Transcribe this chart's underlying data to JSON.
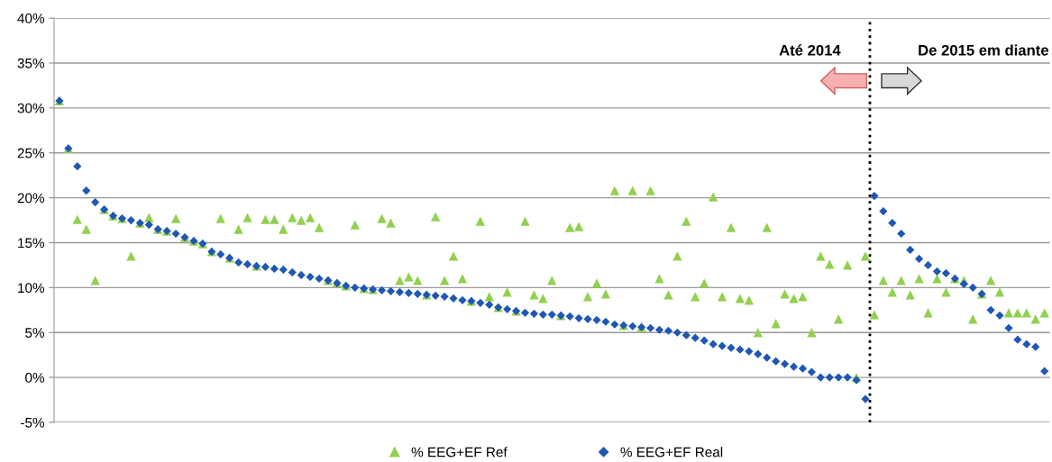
{
  "chart_data": {
    "type": "scatter",
    "categories": [
      null,
      null,
      null,
      null,
      null,
      null,
      null,
      null,
      null,
      null,
      null,
      null,
      null,
      null,
      null,
      null,
      null,
      null,
      null,
      null,
      null,
      null,
      null,
      null,
      null,
      null,
      null,
      null,
      null,
      null,
      null,
      null,
      null,
      null,
      null,
      null,
      null,
      null,
      null,
      null,
      null,
      null,
      null,
      null,
      null,
      null,
      null,
      null,
      null,
      null,
      null,
      null,
      null,
      null,
      null,
      null,
      null,
      null,
      null,
      null,
      null,
      null,
      null,
      null,
      null,
      null,
      null,
      null,
      null,
      null,
      null,
      null,
      null,
      null,
      null,
      null,
      null,
      null,
      null,
      null,
      null,
      null,
      null,
      null,
      null,
      null,
      null,
      null,
      null,
      null,
      null,
      null,
      null,
      null,
      null,
      null,
      null,
      null,
      null,
      null,
      null,
      null,
      null,
      null,
      null,
      null,
      null,
      null,
      null,
      null,
      null
    ],
    "series": [
      {
        "name": "% EEG+EF Ref",
        "color": "#92d050",
        "marker": "triangle",
        "values": [
          30.8,
          25.5,
          17.6,
          16.5,
          10.8,
          18.7,
          18.0,
          17.7,
          13.5,
          17.2,
          17.8,
          16.5,
          16.3,
          17.7,
          15.6,
          15.2,
          14.9,
          14.0,
          17.7,
          13.3,
          16.5,
          17.8,
          12.4,
          17.6,
          17.6,
          16.5,
          17.8,
          17.5,
          17.8,
          16.7,
          10.8,
          10.5,
          10.2,
          17.0,
          9.9,
          9.8,
          17.7,
          17.2,
          10.8,
          11.2,
          10.8,
          9.2,
          17.9,
          10.8,
          13.5,
          11.0,
          8.5,
          17.4,
          9.0,
          7.8,
          9.5,
          7.4,
          17.4,
          9.2,
          8.8,
          10.8,
          6.9,
          16.7,
          16.8,
          9.0,
          10.5,
          9.3,
          20.8,
          5.8,
          20.8,
          5.6,
          20.8,
          11.0,
          9.2,
          13.5,
          17.4,
          9.0,
          10.5,
          20.1,
          9.0,
          16.7,
          8.8,
          8.6,
          5.0,
          16.7,
          6.0,
          9.3,
          8.8,
          9.0,
          5.0,
          13.5,
          12.6,
          6.5,
          12.5,
          0.0,
          13.5,
          7.0,
          10.8,
          9.5,
          10.8,
          9.2,
          11.0,
          7.2,
          11.0,
          9.5,
          11.0,
          10.8,
          6.5,
          9.3,
          10.8,
          9.5,
          7.2,
          7.2,
          7.2,
          6.5,
          7.2
        ]
      },
      {
        "name": "% EEG+EF Real",
        "color": "#1f57b4",
        "marker": "diamond",
        "values": [
          30.8,
          25.5,
          23.5,
          20.8,
          19.5,
          18.7,
          18.0,
          17.7,
          17.5,
          17.2,
          17.0,
          16.5,
          16.3,
          16.0,
          15.6,
          15.2,
          14.9,
          14.0,
          13.7,
          13.3,
          12.8,
          12.6,
          12.4,
          12.3,
          12.1,
          12.0,
          11.7,
          11.4,
          11.2,
          11.0,
          10.8,
          10.5,
          10.2,
          10.0,
          9.9,
          9.8,
          9.7,
          9.6,
          9.5,
          9.4,
          9.3,
          9.2,
          9.1,
          9.0,
          8.8,
          8.6,
          8.5,
          8.3,
          8.1,
          7.8,
          7.6,
          7.4,
          7.2,
          7.1,
          7.0,
          7.0,
          6.9,
          6.8,
          6.6,
          6.5,
          6.4,
          6.2,
          5.9,
          5.8,
          5.7,
          5.6,
          5.5,
          5.3,
          5.2,
          5.0,
          4.7,
          4.4,
          4.1,
          3.7,
          3.5,
          3.3,
          3.1,
          2.9,
          2.6,
          2.2,
          1.8,
          1.5,
          1.2,
          1.0,
          0.6,
          0.0,
          0.0,
          0.0,
          0.0,
          -0.3,
          -2.4,
          20.2,
          18.5,
          17.2,
          16.0,
          14.2,
          13.2,
          12.5,
          11.8,
          11.6,
          11.0,
          10.4,
          10.0,
          9.3,
          7.5,
          6.9,
          5.5,
          4.2,
          3.7,
          3.4,
          0.7
        ]
      }
    ],
    "ylim": [
      -5,
      40
    ],
    "yticks": [
      {
        "value": -5,
        "label": "-5%"
      },
      {
        "value": 0,
        "label": "0%"
      },
      {
        "value": 5,
        "label": "5%"
      },
      {
        "value": 10,
        "label": "10%"
      },
      {
        "value": 15,
        "label": "15%"
      },
      {
        "value": 20,
        "label": "20%"
      },
      {
        "value": 25,
        "label": "25%"
      },
      {
        "value": 30,
        "label": "30%"
      },
      {
        "value": 35,
        "label": "35%"
      },
      {
        "value": 40,
        "label": "40%"
      }
    ],
    "grid": "y",
    "legend": "bottom",
    "annotations": [
      "Até 2014",
      "De 2015 em diante"
    ]
  }
}
